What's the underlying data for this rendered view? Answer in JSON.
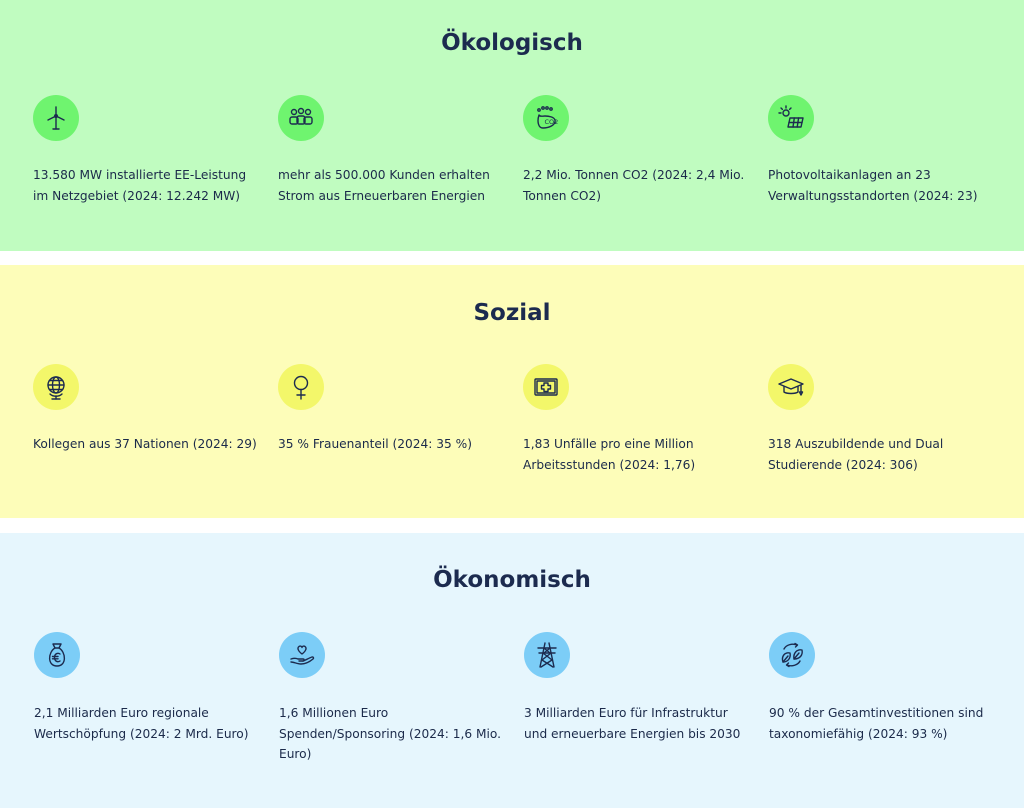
{
  "sections": {
    "oekologisch": {
      "title": "Ökologisch",
      "items": [
        {
          "icon": "wind-turbine-icon",
          "text": "13.580 MW installierte EE-Leistung im Netzgebiet (2024: 12.242 MW)"
        },
        {
          "icon": "people-group-icon",
          "text": "mehr als 500.000 Kunden erhalten Strom aus Erneuerbaren Energien"
        },
        {
          "icon": "co2-footprint-icon",
          "text": "2,2 Mio. Tonnen CO2 (2024: 2,4 Mio. Tonnen CO2)"
        },
        {
          "icon": "solar-panel-icon",
          "text": "Photovoltaikanlagen an 23 Verwaltungsstandorten (2024: 23)"
        }
      ]
    },
    "sozial": {
      "title": "Sozial",
      "items": [
        {
          "icon": "globe-icon",
          "text": "Kollegen aus 37 Nationen (2024: 29)"
        },
        {
          "icon": "female-symbol-icon",
          "text": "35 % Frauenanteil (2024: 35 %)"
        },
        {
          "icon": "first-aid-kit-icon",
          "text": "1,83 Unfälle pro eine Million Arbeitsstunden (2024: 1,76)"
        },
        {
          "icon": "graduation-cap-icon",
          "text": "318 Auszubildende und Dual Studierende (2024: 306)"
        }
      ]
    },
    "oekonomisch": {
      "title": "Ökonomisch",
      "items": [
        {
          "icon": "euro-money-bag-icon",
          "text": "2,1 Milliarden Euro regionale Wertschöpfung (2024: 2 Mrd. Euro)"
        },
        {
          "icon": "heart-hand-icon",
          "text": "1,6 Millionen Euro Spenden/Sponsoring (2024: 1,6 Mio. Euro)"
        },
        {
          "icon": "power-pylon-icon",
          "text": "3 Milliarden Euro für Infrastruktur und erneuerbare Energien bis 2030"
        },
        {
          "icon": "leaves-cycle-icon",
          "text": "90 % der Gesamtinvestitionen sind taxonomiefähig (2024: 93 %)"
        }
      ]
    }
  },
  "colors": {
    "oekologisch_bg": "#c0fcc0",
    "oekologisch_icon": "#6ff46f",
    "sozial_bg": "#fdfdb9",
    "sozial_icon": "#f3f76a",
    "oekonomisch_bg": "#e6f6fd",
    "oekonomisch_icon": "#7ccdf7",
    "text": "#1b2a4a"
  }
}
